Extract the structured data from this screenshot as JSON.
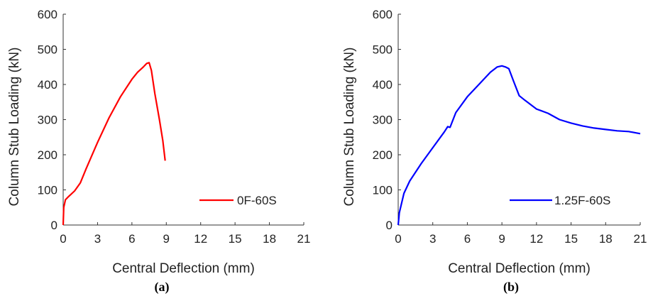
{
  "chart_data": [
    {
      "type": "line",
      "panel_label": "(a)",
      "xlabel": "Central Deflection (mm)",
      "ylabel": "Column Stub Loading (kN)",
      "xlim": [
        0,
        21
      ],
      "ylim": [
        0,
        600
      ],
      "xticks": [
        0,
        3,
        6,
        9,
        12,
        15,
        18,
        21
      ],
      "yticks": [
        0,
        100,
        200,
        300,
        400,
        500,
        600
      ],
      "grid": false,
      "legend_position": "lower-right",
      "series": [
        {
          "name": "0F-60S",
          "color": "#ff0000",
          "x": [
            0,
            0.05,
            0.2,
            0.5,
            1,
            1.5,
            2,
            3,
            4,
            5,
            6,
            6.5,
            7,
            7.3,
            7.5,
            7.7,
            8.0,
            8.4,
            8.7,
            8.9
          ],
          "y": [
            0,
            50,
            72,
            82,
            97,
            120,
            160,
            235,
            305,
            365,
            415,
            435,
            450,
            460,
            462,
            440,
            375,
            300,
            240,
            183
          ]
        }
      ]
    },
    {
      "type": "line",
      "panel_label": "(b)",
      "xlabel": "Central Deflection (mm)",
      "ylabel": "Column Stub Loading (kN)",
      "xlim": [
        0,
        21
      ],
      "ylim": [
        0,
        600
      ],
      "xticks": [
        0,
        3,
        6,
        9,
        12,
        15,
        18,
        21
      ],
      "yticks": [
        0,
        100,
        200,
        300,
        400,
        500,
        600
      ],
      "grid": false,
      "legend_position": "lower-right",
      "series": [
        {
          "name": "1.25F-60S",
          "color": "#0000ff",
          "x": [
            0,
            0.1,
            0.5,
            1,
            2,
            3,
            4,
            4.3,
            4.5,
            5,
            6,
            7,
            8,
            8.6,
            9,
            9.3,
            9.6,
            10,
            10.5,
            11,
            12,
            13,
            14,
            15,
            16,
            17,
            18,
            19,
            20,
            21
          ],
          "y": [
            0,
            35,
            90,
            125,
            175,
            220,
            265,
            280,
            278,
            320,
            365,
            400,
            435,
            450,
            453,
            450,
            445,
            410,
            368,
            355,
            330,
            318,
            300,
            290,
            282,
            276,
            272,
            268,
            266,
            260
          ]
        }
      ]
    }
  ]
}
